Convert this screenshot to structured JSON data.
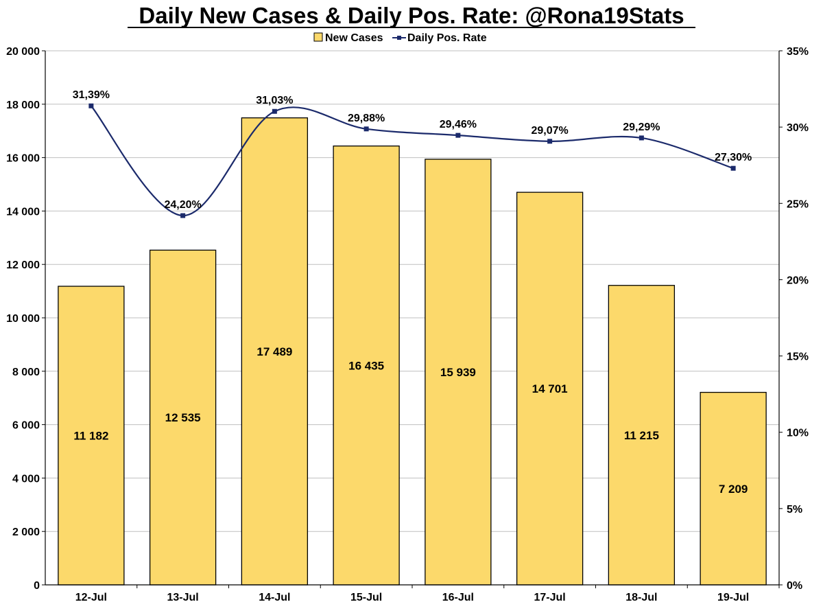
{
  "chart_data": {
    "type": "bar",
    "title": "Daily New Cases & Daily Pos. Rate: @Rona19Stats",
    "categories": [
      "12-Jul",
      "13-Jul",
      "14-Jul",
      "15-Jul",
      "16-Jul",
      "17-Jul",
      "18-Jul",
      "19-Jul"
    ],
    "series": [
      {
        "name": "New Cases",
        "type": "bar",
        "axis": "left",
        "color": "#FCD96B",
        "values": [
          11182,
          12535,
          17489,
          16435,
          15939,
          14701,
          11215,
          7209
        ],
        "labels": [
          "11 182",
          "12 535",
          "17 489",
          "16 435",
          "15 939",
          "14 701",
          "11 215",
          "7 209"
        ]
      },
      {
        "name": "Daily Pos. Rate",
        "type": "line",
        "axis": "right",
        "color": "#1B2A6B",
        "smooth": true,
        "values": [
          31.39,
          24.2,
          31.03,
          29.88,
          29.46,
          29.07,
          29.29,
          27.3
        ],
        "labels": [
          "31,39%",
          "24,20%",
          "31,03%",
          "29,88%",
          "29,46%",
          "29,07%",
          "29,29%",
          "27,30%"
        ]
      }
    ],
    "y_left": {
      "range": [
        0,
        20000
      ],
      "ticks": [
        0,
        2000,
        4000,
        6000,
        8000,
        10000,
        12000,
        14000,
        16000,
        18000,
        20000
      ],
      "tick_labels": [
        "0",
        "2 000",
        "4 000",
        "6 000",
        "8 000",
        "10 000",
        "12 000",
        "14 000",
        "16 000",
        "18 000",
        "20 000"
      ]
    },
    "y_right": {
      "range": [
        0,
        35
      ],
      "ticks": [
        0,
        5,
        10,
        15,
        20,
        25,
        30,
        35
      ],
      "tick_labels": [
        "0%",
        "5%",
        "10%",
        "15%",
        "20%",
        "25%",
        "30%",
        "35%"
      ]
    },
    "grid": true,
    "legend": "top-center"
  }
}
